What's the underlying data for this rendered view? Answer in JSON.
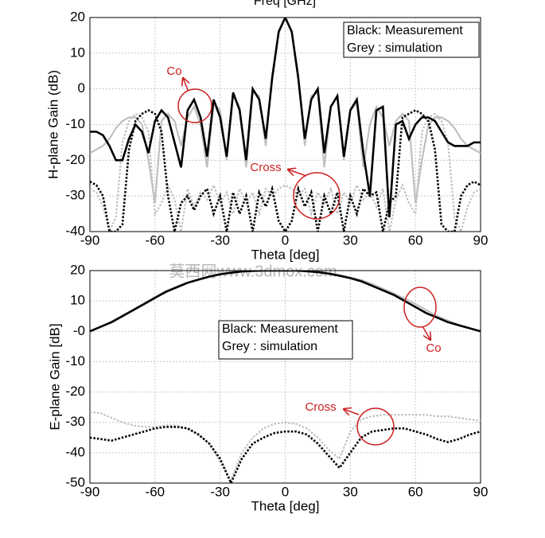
{
  "chart_data": [
    {
      "type": "line",
      "title": "Freq [GHz]",
      "xlabel": "Theta [deg]",
      "ylabel": "H-plane Gain (dB)",
      "legend_text": [
        "Black: Measurement",
        "Grey : simulation"
      ],
      "annotations": [
        "Co",
        "Cross"
      ],
      "xlim": [
        -90,
        90
      ],
      "ylim": [
        -40,
        20
      ],
      "xticks": [
        -90,
        -60,
        -30,
        0,
        30,
        60,
        90
      ],
      "yticks": [
        -40,
        -30,
        -20,
        -10,
        0,
        10,
        20
      ],
      "grid": true,
      "x": [
        -90,
        -87,
        -84,
        -81,
        -78,
        -75,
        -72,
        -69,
        -66,
        -63,
        -60,
        -57,
        -54,
        -51,
        -48,
        -45,
        -42,
        -39,
        -36,
        -33,
        -30,
        -27,
        -24,
        -21,
        -18,
        -15,
        -12,
        -9,
        -6,
        -3,
        0,
        3,
        6,
        9,
        12,
        15,
        18,
        21,
        24,
        27,
        30,
        33,
        36,
        39,
        42,
        45,
        48,
        51,
        54,
        57,
        60,
        63,
        66,
        69,
        72,
        75,
        78,
        81,
        84,
        87,
        90
      ],
      "series": [
        {
          "color": "#c0c0c0",
          "style": "solid",
          "values": [
            -18,
            -17,
            -16,
            -14,
            -11,
            -9,
            -8,
            -8,
            -10,
            -20,
            -32,
            -9,
            -7,
            -9,
            -16,
            -8,
            -5,
            -10,
            -22,
            -4,
            -6,
            -20,
            -2,
            -5,
            -22,
            -1,
            -2,
            -16,
            4,
            16,
            20,
            16,
            4,
            -16,
            -2,
            -1,
            -22,
            -5,
            -2,
            -20,
            -6,
            -4,
            -22,
            -10,
            -5,
            -8,
            -16,
            -9,
            -7,
            -9,
            -32,
            -20,
            -10,
            -8,
            -8,
            -9,
            -11,
            -14,
            -16,
            -17,
            -18
          ]
        },
        {
          "color": "#c0c0c0",
          "style": "dotted",
          "values": [
            -28,
            -29,
            -33,
            -40,
            -36,
            -15,
            -9,
            -7,
            -8,
            -12,
            -35,
            -32,
            -27,
            -31,
            -40,
            -28,
            -33,
            -29,
            -31,
            -27,
            -32,
            -29,
            -35,
            -28,
            -32,
            -29,
            -35,
            -28,
            -30,
            -28,
            -27,
            -28,
            -30,
            -28,
            -35,
            -29,
            -32,
            -28,
            -35,
            -29,
            -32,
            -27,
            -31,
            -29,
            -33,
            -28,
            -40,
            -31,
            -27,
            -32,
            -35,
            -12,
            -8,
            -7,
            -9,
            -15,
            -36,
            -40,
            -33,
            -29,
            -28
          ]
        },
        {
          "color": "#000000",
          "style": "solid",
          "values": [
            -12,
            -12,
            -13,
            -16,
            -20,
            -20,
            -14,
            -10,
            -12,
            -18,
            -9,
            -6,
            -8,
            -15,
            -22,
            -6,
            -3,
            -8,
            -19,
            -3,
            -8,
            -19,
            -1,
            -6,
            -20,
            0,
            -3,
            -14,
            3,
            16,
            20,
            16,
            3,
            -14,
            -3,
            0,
            -18,
            -5,
            -2,
            -19,
            -6,
            -3,
            -18,
            -30,
            -6,
            -5,
            -36,
            -10,
            -9,
            -14,
            -10,
            -8,
            -8,
            -9,
            -12,
            -15,
            -16,
            -16,
            -16,
            -15,
            -15
          ]
        },
        {
          "color": "#000000",
          "style": "dotted",
          "values": [
            -26,
            -27,
            -30,
            -40,
            -40,
            -38,
            -17,
            -9,
            -7,
            -6,
            -7,
            -12,
            -30,
            -40,
            -32,
            -30,
            -34,
            -30,
            -28,
            -35,
            -30,
            -40,
            -29,
            -35,
            -30,
            -40,
            -29,
            -33,
            -28,
            -37,
            -40,
            -37,
            -28,
            -33,
            -29,
            -40,
            -30,
            -35,
            -29,
            -40,
            -30,
            -35,
            -28,
            -30,
            -29,
            -40,
            -32,
            -30,
            -8,
            -7,
            -6,
            -7,
            -9,
            -17,
            -38,
            -40,
            -40,
            -30,
            -27,
            -26,
            -27
          ]
        }
      ]
    },
    {
      "type": "line",
      "xlabel": "Theta [deg]",
      "ylabel": "E-plane Gain [dB]",
      "watermark": "莫西网www.3dmox.com",
      "legend_text": [
        "Black: Measurement",
        "Grey : simulation"
      ],
      "annotations": [
        "Co",
        "Cross"
      ],
      "xlim": [
        -90,
        90
      ],
      "ylim": [
        -50,
        20
      ],
      "xticks": [
        -90,
        -60,
        -30,
        0,
        30,
        60,
        90
      ],
      "yticks": [
        -50,
        -40,
        -30,
        -20,
        -10,
        {
          "value": 0,
          "label": "-0"
        },
        10,
        20
      ],
      "grid": true,
      "x": [
        -90,
        -85,
        -80,
        -75,
        -70,
        -65,
        -60,
        -55,
        -50,
        -45,
        -40,
        -35,
        -30,
        -25,
        -20,
        -15,
        -10,
        -5,
        0,
        5,
        10,
        15,
        20,
        25,
        30,
        35,
        40,
        45,
        50,
        55,
        60,
        65,
        70,
        75,
        80,
        85,
        90
      ],
      "series": [
        {
          "color": "#c0c0c0",
          "style": "solid",
          "values": [
            0,
            1.6,
            3.2,
            5.2,
            7.2,
            9.2,
            11.3,
            13.2,
            14.7,
            16.1,
            17.1,
            18.1,
            18.9,
            19.4,
            19.8,
            20,
            20,
            20,
            20,
            20,
            19.9,
            19.6,
            19.2,
            18.6,
            17.8,
            16.9,
            15.6,
            14,
            12.5,
            10.8,
            9,
            7,
            5,
            3.5,
            2.2,
            1,
            0
          ]
        },
        {
          "color": "#c0c0c0",
          "style": "dotted",
          "values": [
            -26.5,
            -27,
            -28.5,
            -30,
            -31,
            -31.5,
            -31.5,
            -31,
            -31,
            -32,
            -34,
            -37,
            -43,
            -49,
            -40,
            -35,
            -32,
            -30.5,
            -30,
            -30.5,
            -32,
            -35,
            -39,
            -42,
            -33,
            -29,
            -28,
            -27.5,
            -27.5,
            -27.5,
            -27.5,
            -27.5,
            -28,
            -28,
            -28.5,
            -29,
            -29.5
          ]
        },
        {
          "color": "#000000",
          "style": "solid",
          "values": [
            0,
            1.5,
            3,
            5,
            7,
            9,
            11,
            13,
            14.5,
            16,
            17,
            18,
            18.8,
            19.3,
            19.7,
            19.9,
            20,
            20,
            20,
            20,
            19.8,
            19.5,
            19,
            18.3,
            17.5,
            16.5,
            15,
            13.5,
            12,
            10,
            8,
            6,
            4.5,
            3,
            2,
            1,
            0
          ]
        },
        {
          "color": "#000000",
          "style": "dotted",
          "values": [
            -35,
            -35.5,
            -36,
            -35,
            -34,
            -33,
            -32,
            -31.5,
            -31.5,
            -32,
            -34,
            -37,
            -42,
            -50,
            -42,
            -37,
            -35,
            -33.5,
            -33,
            -33,
            -34,
            -37,
            -41,
            -45,
            -40,
            -35,
            -33,
            -32.5,
            -32,
            -32,
            -33,
            -34,
            -35.5,
            -36.5,
            -35.5,
            -34,
            -33
          ]
        }
      ]
    }
  ]
}
